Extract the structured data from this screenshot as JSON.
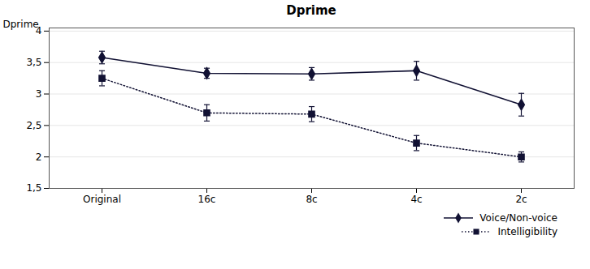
{
  "chart_data": {
    "type": "line",
    "title": "Dprime",
    "ylabel": "Dprime",
    "categories": [
      "Original",
      "16c",
      "8c",
      "4c",
      "2c"
    ],
    "series": [
      {
        "name": "Voice/Non-voice",
        "color": "#111133",
        "marker": "diamond",
        "line_style": "solid",
        "values": [
          3.58,
          3.33,
          3.32,
          3.37,
          2.83
        ],
        "errors": [
          0.1,
          0.08,
          0.1,
          0.15,
          0.18
        ]
      },
      {
        "name": "Intelligibility",
        "color": "#111133",
        "marker": "square",
        "line_style": "dotted",
        "values": [
          3.25,
          2.7,
          2.68,
          2.22,
          2.0
        ],
        "errors": [
          0.12,
          0.13,
          0.12,
          0.12,
          0.08
        ]
      }
    ],
    "ylim": [
      1.5,
      4.05
    ],
    "yticks": [
      {
        "value": 1.5,
        "label": "1,5"
      },
      2,
      {
        "value": 2.5,
        "label": "2,5"
      },
      3,
      {
        "value": 3.5,
        "label": "3,5"
      },
      4
    ],
    "grid": true,
    "legend": "lower right"
  }
}
